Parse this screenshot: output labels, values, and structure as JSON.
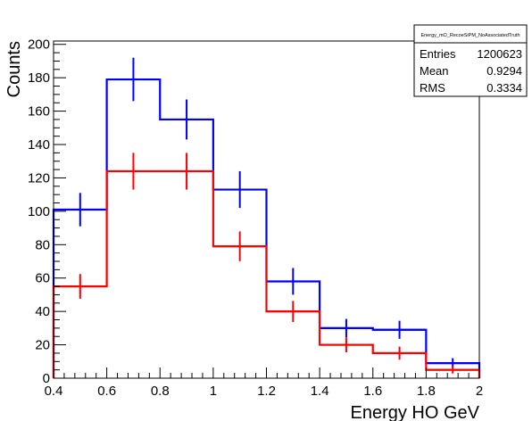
{
  "chart_data": {
    "type": "histogram",
    "xlabel": "Energy HO GeV",
    "ylabel": "Counts",
    "xlim": [
      0.4,
      2.0
    ],
    "ylim": [
      0,
      202
    ],
    "x_ticks": [
      0.4,
      0.6,
      0.8,
      1,
      1.2,
      1.4,
      1.6,
      1.8,
      2
    ],
    "x_tick_labels": [
      "0.4",
      "0.6",
      "0.8",
      "1",
      "1.2",
      "1.4",
      "1.6",
      "1.8",
      "2"
    ],
    "y_ticks": [
      0,
      20,
      40,
      60,
      80,
      100,
      120,
      140,
      160,
      180,
      200
    ],
    "y_tick_labels": [
      "0",
      "20",
      "40",
      "60",
      "80",
      "100",
      "120",
      "140",
      "160",
      "180",
      "200"
    ],
    "bin_edges": [
      0.4,
      0.6,
      0.8,
      1.0,
      1.2,
      1.4,
      1.6,
      1.8,
      2.0
    ],
    "grid": false,
    "series": [
      {
        "color": "#0000ff",
        "values": [
          101,
          179,
          155,
          113,
          58,
          30,
          29,
          9
        ],
        "errors": [
          10,
          13,
          12,
          11,
          8,
          5.5,
          5.4,
          3
        ]
      },
      {
        "color": "#ff0000",
        "values": [
          55,
          124,
          124,
          79,
          40,
          20,
          15,
          5
        ],
        "errors": [
          7.4,
          11,
          11,
          8.9,
          6.3,
          4.5,
          3.9,
          2.2
        ]
      }
    ],
    "stats_box": {
      "title": "Energy_mO_RecoeSiPM_NoAssociatedTruth",
      "rows": [
        {
          "label": "Entries",
          "value": "1200623"
        },
        {
          "label": "Mean",
          "value": "0.9294"
        },
        {
          "label": "RMS",
          "value": "0.3334"
        }
      ],
      "placement": "top-right"
    }
  }
}
